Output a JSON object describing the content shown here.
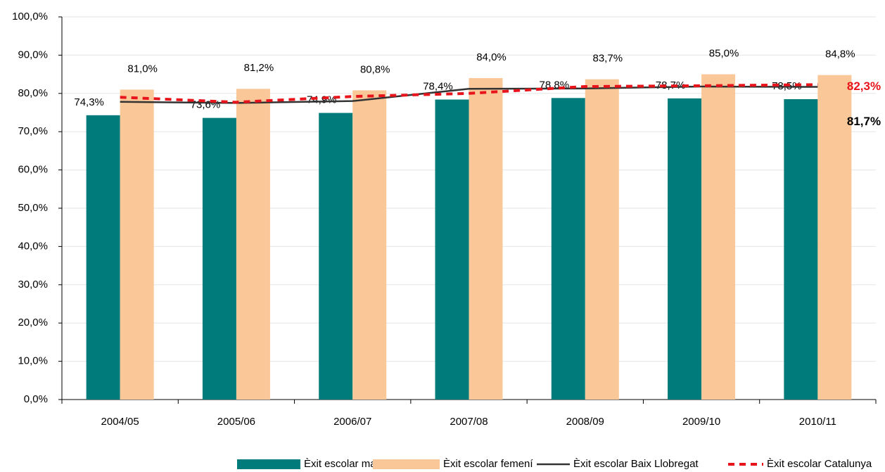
{
  "chart_data": {
    "type": "bar",
    "categories": [
      "2004/05",
      "2005/06",
      "2006/07",
      "2007/08",
      "2008/09",
      "2009/10",
      "2010/11"
    ],
    "series": [
      {
        "name": "Èxit escolar masculí",
        "type": "bar",
        "color": "#007b7b",
        "values": [
          74.3,
          73.6,
          74.9,
          78.4,
          78.8,
          78.7,
          78.5
        ],
        "value_labels": [
          "74,3%",
          "73,6%",
          "74,9%",
          "78,4%",
          "78,8%",
          "78,7%",
          "78,5%"
        ]
      },
      {
        "name": "Èxit escolar femení",
        "type": "bar",
        "color": "#fac898",
        "values": [
          81.0,
          81.2,
          80.8,
          84.0,
          83.7,
          85.0,
          84.8
        ],
        "value_labels": [
          "81,0%",
          "81,2%",
          "80,8%",
          "84,0%",
          "83,7%",
          "85,0%",
          "84,8%"
        ]
      },
      {
        "name": "Èxit escolar Baix Llobregat",
        "type": "line",
        "color": "#333333",
        "dash": false,
        "values": [
          77.8,
          77.5,
          78.0,
          81.2,
          81.3,
          81.8,
          81.7
        ],
        "value_labels": [
          null,
          null,
          null,
          null,
          null,
          null,
          "81,7%"
        ]
      },
      {
        "name": "Èxit escolar Catalunya",
        "type": "line",
        "color": "#e8141c",
        "dash": true,
        "values": [
          79.0,
          77.7,
          79.2,
          80.0,
          81.8,
          82.0,
          82.3
        ],
        "value_labels": [
          null,
          null,
          null,
          null,
          null,
          null,
          "82,3%"
        ]
      }
    ],
    "ylim": [
      0,
      100
    ],
    "yticks": [
      {
        "value": 0,
        "label": "0,0%"
      },
      {
        "value": 10,
        "label": "10,0%"
      },
      {
        "value": 20,
        "label": "20,0%"
      },
      {
        "value": 30,
        "label": "30,0%"
      },
      {
        "value": 40,
        "label": "40,0%"
      },
      {
        "value": 50,
        "label": "50,0%"
      },
      {
        "value": 60,
        "label": "60,0%"
      },
      {
        "value": 70,
        "label": "70,0%"
      },
      {
        "value": 80,
        "label": "80,0%"
      },
      {
        "value": 90,
        "label": "90,0%"
      },
      {
        "value": 100,
        "label": "100,0%"
      }
    ],
    "grid": true,
    "legend": "bottom"
  }
}
